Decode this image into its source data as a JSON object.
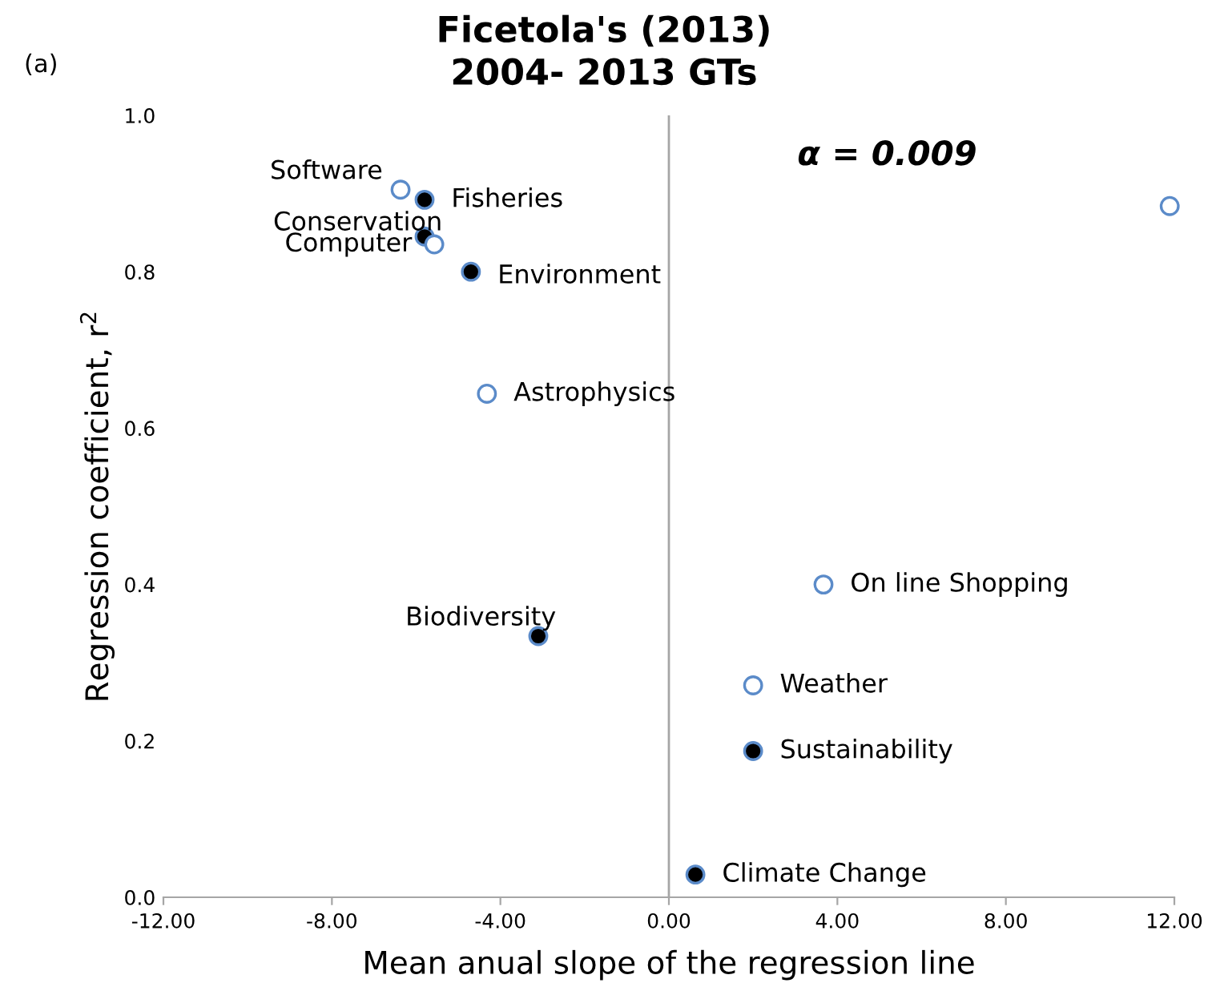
{
  "chart_data": {
    "type": "scatter",
    "title": "Ficetola's (2013)\n2004- 2013 GTs",
    "xlabel": "Mean anual slope of the regression line",
    "ylabel": "Regression coefficient, r$^{2}$",
    "series": [
      {
        "color": "#000000",
        "x": [
          -5.8,
          -5.8,
          -4.7,
          -3.1,
          2.0,
          0.63
        ],
        "values": [
          0.892,
          0.845,
          0.8,
          0.334,
          0.187,
          0.029
        ]
      },
      {
        "color": "#ffffff",
        "x": [
          -6.37,
          -5.57,
          -4.32,
          11.89,
          3.67,
          2.0
        ],
        "values": [
          0.905,
          0.835,
          0.644,
          0.884,
          0.4,
          0.271
        ]
      }
    ],
    "annotations": [
      "(a)",
      "α = 0.009",
      {
        "text": "Software",
        "x": -6.37,
        "y": 0.905
      },
      {
        "text": "Fisheries",
        "x": -5.8,
        "y": 0.892
      },
      {
        "text": "Conservation",
        "x": -5.8,
        "y": 0.845
      },
      {
        "text": "Computer",
        "x": -5.57,
        "y": 0.835
      },
      {
        "text": "Environment",
        "x": -4.7,
        "y": 0.8
      },
      {
        "text": "Astrophysics",
        "x": -4.32,
        "y": 0.644
      },
      {
        "text": "Biodiversity",
        "x": -3.1,
        "y": 0.334
      },
      {
        "text": "On line Shopping",
        "x": 3.67,
        "y": 0.4
      },
      {
        "text": "Weather",
        "x": 2.0,
        "y": 0.271
      },
      {
        "text": "Sustainability",
        "x": 2.0,
        "y": 0.187
      },
      {
        "text": "Climate Change",
        "x": 0.63,
        "y": 0.029
      }
    ],
    "ref_lines": [
      {
        "axis": "x",
        "value": 0,
        "color": "#a6a6a6"
      }
    ],
    "xlim": [
      -12,
      12
    ],
    "xticks": [
      {
        "value": -12,
        "label": "-12.00"
      },
      {
        "value": -8,
        "label": "-8.00"
      },
      {
        "value": -4,
        "label": "-4.00"
      },
      {
        "value": 0,
        "label": "0.00"
      },
      {
        "value": 4,
        "label": "4.00"
      },
      {
        "value": 8,
        "label": "8.00"
      },
      {
        "value": 12,
        "label": "12.00"
      }
    ],
    "ylim": [
      0,
      1
    ],
    "yticks": [
      {
        "value": 0,
        "label": "0.0"
      },
      {
        "value": 0.2,
        "label": "0.2"
      },
      {
        "value": 0.4,
        "label": "0.4"
      },
      {
        "value": 0.6,
        "label": "0.6"
      },
      {
        "value": 0.8,
        "label": "0.8"
      },
      {
        "value": 1,
        "label": "1.0"
      }
    ],
    "grid": false,
    "legend": false,
    "marker": "circle"
  }
}
